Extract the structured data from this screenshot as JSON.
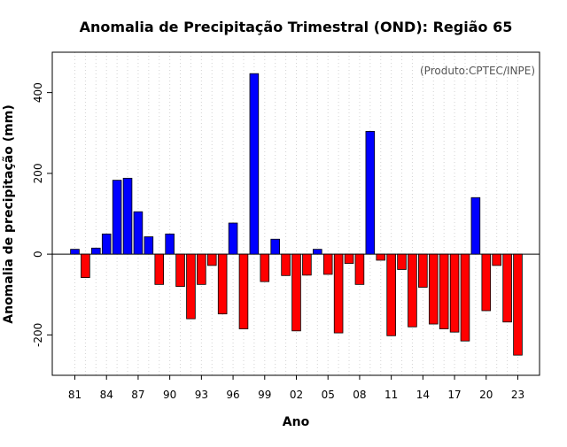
{
  "chart_data": {
    "type": "bar",
    "title": "Anomalia de Precipitação Trimestral (OND): Região 65",
    "xlabel": "Ano",
    "ylabel": "Anomalia de precipitação (mm)",
    "annotation": "(Produto:CPTEC/INPE)",
    "ylim": [
      -300,
      500
    ],
    "yticks": [
      -200,
      0,
      200,
      400
    ],
    "grid": true,
    "positive_color": "#0000ff",
    "negative_color": "#ff0000",
    "categories": [
      "81",
      "82",
      "83",
      "84",
      "85",
      "86",
      "87",
      "88",
      "89",
      "90",
      "91",
      "92",
      "93",
      "94",
      "95",
      "96",
      "97",
      "98",
      "99",
      "00",
      "01",
      "02",
      "03",
      "04",
      "05",
      "06",
      "07",
      "08",
      "09",
      "10",
      "11",
      "12",
      "13",
      "14",
      "15",
      "16",
      "17",
      "18",
      "19",
      "20",
      "21",
      "22",
      "23"
    ],
    "tick_labels": [
      "81",
      "84",
      "87",
      "90",
      "93",
      "96",
      "99",
      "02",
      "05",
      "08",
      "11",
      "14",
      "17",
      "20",
      "23"
    ],
    "values": [
      12,
      -58,
      15,
      50,
      183,
      188,
      105,
      43,
      -75,
      50,
      -80,
      -160,
      -75,
      -28,
      -148,
      77,
      -185,
      447,
      -68,
      37,
      -53,
      -190,
      -52,
      12,
      -50,
      -195,
      -23,
      -75,
      304,
      -15,
      -202,
      -38,
      -180,
      -82,
      -173,
      -185,
      -193,
      -215,
      140,
      -140,
      -28,
      -168,
      -250
    ]
  }
}
